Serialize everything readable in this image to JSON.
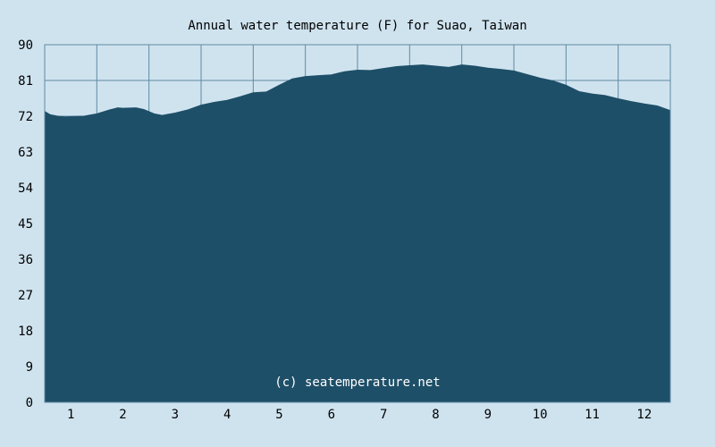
{
  "chart_data": {
    "type": "area",
    "title": "Annual water temperature (F) for Suao, Taiwan",
    "xlabel": "",
    "ylabel": "",
    "ylim": [
      0,
      90
    ],
    "xlim": [
      0.5,
      12.5
    ],
    "y_ticks": [
      "0",
      "9",
      "18",
      "27",
      "36",
      "45",
      "54",
      "63",
      "72",
      "81",
      "90"
    ],
    "x_ticks": [
      "1",
      "2",
      "3",
      "4",
      "5",
      "6",
      "7",
      "8",
      "9",
      "10",
      "11",
      "12"
    ],
    "grid": true,
    "legend": "none",
    "series": [
      {
        "x": [
          0.5,
          0.6,
          0.75,
          0.9,
          1.0,
          1.25,
          1.5,
          1.75,
          1.9,
          2.0,
          2.25,
          2.4,
          2.6,
          2.75,
          3.0,
          3.25,
          3.5,
          3.75,
          4.0,
          4.25,
          4.5,
          4.75,
          5.0,
          5.25,
          5.5,
          5.75,
          6.0,
          6.25,
          6.5,
          6.75,
          7.0,
          7.25,
          7.5,
          7.75,
          8.0,
          8.25,
          8.5,
          8.75,
          9.0,
          9.25,
          9.5,
          9.75,
          10.0,
          10.25,
          10.5,
          10.75,
          11.0,
          11.25,
          11.5,
          11.75,
          12.0,
          12.25,
          12.5
        ],
        "values": [
          73.2,
          72.4,
          72.0,
          71.8,
          71.9,
          72.0,
          72.6,
          73.6,
          74.1,
          74.0,
          74.1,
          73.7,
          72.6,
          72.2,
          72.8,
          73.6,
          74.8,
          75.5,
          76.0,
          76.9,
          77.9,
          78.1,
          79.8,
          81.4,
          82.0,
          82.2,
          82.4,
          83.2,
          83.6,
          83.5,
          84.0,
          84.5,
          84.7,
          84.9,
          84.6,
          84.3,
          84.9,
          84.6,
          84.1,
          83.8,
          83.4,
          82.5,
          81.6,
          80.9,
          79.8,
          78.2,
          77.6,
          77.2,
          76.4,
          75.7,
          75.1,
          74.6,
          73.4
        ]
      }
    ],
    "colors": {
      "background": "#cfe3ef",
      "fill": "#1e4f68",
      "grid": "#5f8aa2",
      "axis": "#1e4f68",
      "text": "#000000",
      "watermark": "#ffffff"
    },
    "watermark": "(c) seatemperature.net"
  }
}
